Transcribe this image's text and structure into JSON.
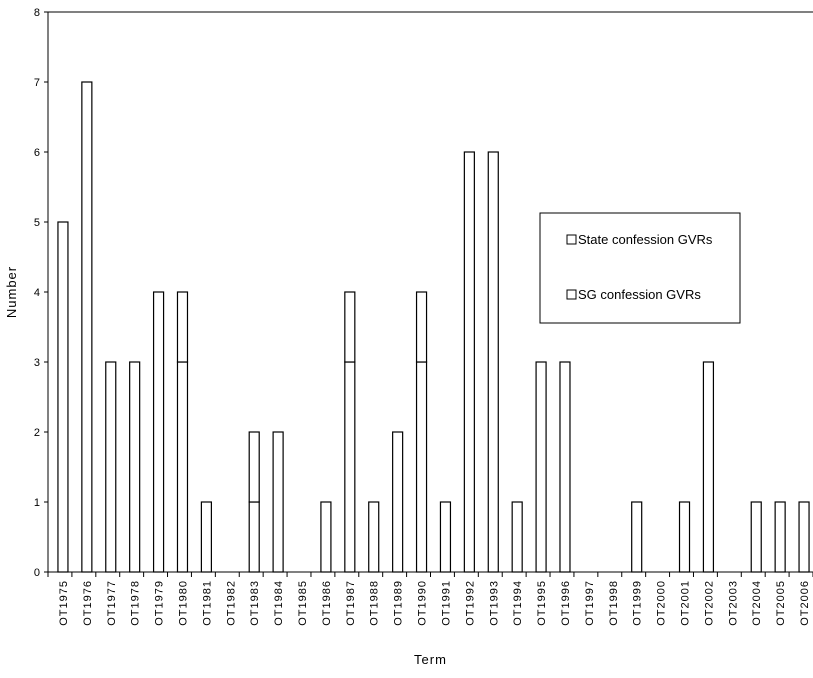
{
  "chart_data": {
    "type": "bar",
    "stacked": true,
    "title": "",
    "xlabel": "Term",
    "ylabel": "Number",
    "ylim": [
      0,
      8
    ],
    "yticks": [
      0,
      1,
      2,
      3,
      4,
      5,
      6,
      7,
      8
    ],
    "grid": false,
    "legend_position": "right-middle",
    "categories": [
      "OT1975",
      "OT1976",
      "OT1977",
      "OT1978",
      "OT1979",
      "OT1980",
      "OT1981",
      "OT1982",
      "OT1983",
      "OT1984",
      "OT1985",
      "OT1986",
      "OT1987",
      "OT1988",
      "OT1989",
      "OT1990",
      "OT1991",
      "OT1992",
      "OT1993",
      "OT1994",
      "OT1995",
      "OT1996",
      "OT1997",
      "OT1998",
      "OT1999",
      "OT2000",
      "OT2001",
      "OT2002",
      "OT2003",
      "OT2004",
      "OT2005",
      "OT2006"
    ],
    "series": [
      {
        "name": "State confession GVRs",
        "values": [
          5,
          7,
          3,
          3,
          4,
          3,
          1,
          0,
          1,
          2,
          0,
          1,
          3,
          1,
          2,
          3,
          1,
          6,
          6,
          1,
          3,
          3,
          0,
          0,
          1,
          0,
          1,
          3,
          0,
          1,
          1,
          1
        ]
      },
      {
        "name": "SG confession GVRs",
        "values": [
          0,
          0,
          0,
          0,
          0,
          1,
          0,
          0,
          1,
          0,
          0,
          0,
          1,
          0,
          0,
          1,
          0,
          0,
          0,
          0,
          0,
          0,
          0,
          0,
          0,
          0,
          0,
          0,
          0,
          0,
          0,
          0
        ]
      }
    ]
  }
}
